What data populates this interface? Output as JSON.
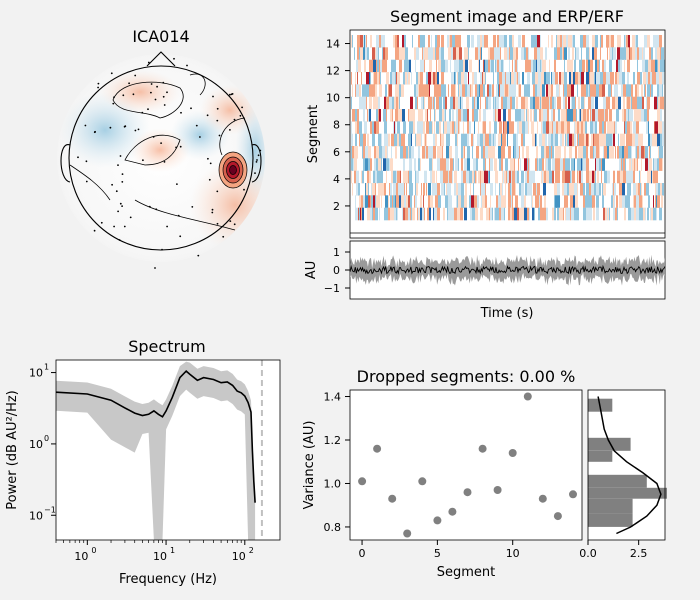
{
  "topomap": {
    "title": "ICA014"
  },
  "segment_image": {
    "title": "Segment image and ERP/ERF",
    "ylabel": "Segment",
    "yticks": [
      "2",
      "4",
      "6",
      "8",
      "10",
      "12",
      "14"
    ]
  },
  "erp": {
    "ylabel": "AU",
    "xlabel": "Time (s)",
    "yticks": [
      "1",
      "0",
      "−1"
    ]
  },
  "spectrum": {
    "title": "Spectrum",
    "ylabel": "Power (dB AU²/Hz)",
    "xlabel": "Frequency (Hz)"
  },
  "dropped": {
    "title": "Dropped segments: 0.00 %",
    "ylabel": "Variance (AU)",
    "xlabel": "Segment",
    "xticks": [
      "0",
      "5",
      "10"
    ],
    "yticks": [
      "1.4",
      "1.2",
      "1.0",
      "0.8"
    ],
    "hist_xticks": [
      "0.0",
      "2.5"
    ]
  },
  "colors": {
    "background": "#f2f2f2",
    "points": "#808080",
    "bars": "#808080",
    "hot": "#b2182b",
    "cold": "#2166ac"
  },
  "chart_data": [
    {
      "type": "heatmap",
      "title": "Segment image and ERP/ERF",
      "ylabel": "Segment",
      "ylim": [
        0,
        15
      ],
      "rows": 15
    },
    {
      "type": "line",
      "xlabel": "Time (s)",
      "ylabel": "AU",
      "ylim": [
        -1.6,
        1.5
      ],
      "mean_level": 0,
      "noise_amplitude": 0.5
    },
    {
      "type": "line",
      "title": "Spectrum",
      "xlabel": "Frequency (Hz)",
      "ylabel": "Power (dB AU²/Hz)",
      "log_x": true,
      "log_y": true,
      "xlim": [
        0.4,
        280
      ],
      "ylim": [
        0.045,
        15
      ],
      "vline": 165,
      "x": [
        0.4,
        1,
        2,
        3,
        4,
        5,
        6,
        7,
        8,
        9,
        10,
        12,
        15,
        18,
        20,
        25,
        30,
        40,
        50,
        60,
        70,
        80,
        90,
        100,
        110,
        120,
        125,
        130,
        135
      ],
      "y": [
        5.3,
        5.0,
        4.1,
        3.2,
        2.7,
        2.5,
        2.6,
        2.9,
        2.6,
        2.4,
        2.9,
        4.5,
        8.5,
        10.5,
        9.5,
        7.8,
        8.5,
        8.0,
        7.2,
        7.4,
        6.6,
        5.5,
        5.2,
        4.7,
        3.8,
        2.8,
        0.8,
        0.3,
        0.15
      ]
    },
    {
      "type": "scatter",
      "title": "Dropped segments: 0.00 %",
      "xlabel": "Segment",
      "ylabel": "Variance (AU)",
      "xlim": [
        -0.8,
        14.6
      ],
      "ylim": [
        0.74,
        1.43
      ],
      "x": [
        0,
        1,
        2,
        3,
        4,
        5,
        6,
        7,
        8,
        9,
        10,
        11,
        12,
        13,
        14
      ],
      "y": [
        1.01,
        1.16,
        0.93,
        0.77,
        1.01,
        0.83,
        0.87,
        0.96,
        1.16,
        0.97,
        1.14,
        1.4,
        0.93,
        0.85,
        0.95
      ]
    },
    {
      "type": "bar",
      "orientation": "horizontal",
      "xlim": [
        0,
        3.8
      ],
      "bins": [
        [
          0.8,
          0.86,
          2.2
        ],
        [
          0.86,
          0.93,
          2.2
        ],
        [
          0.93,
          0.98,
          3.9
        ],
        [
          0.98,
          1.04,
          2.9
        ],
        [
          1.1,
          1.15,
          1.2
        ],
        [
          1.15,
          1.21,
          2.1
        ],
        [
          1.33,
          1.39,
          1.2
        ]
      ],
      "kde": [
        [
          0.77,
          1.4
        ],
        [
          0.8,
          2.1
        ],
        [
          0.85,
          2.9
        ],
        [
          0.9,
          3.4
        ],
        [
          0.95,
          3.6
        ],
        [
          1.0,
          3.4
        ],
        [
          1.05,
          2.7
        ],
        [
          1.1,
          1.9
        ],
        [
          1.15,
          1.3
        ],
        [
          1.2,
          1.0
        ],
        [
          1.25,
          0.8
        ],
        [
          1.3,
          0.7
        ],
        [
          1.35,
          0.6
        ],
        [
          1.4,
          0.5
        ]
      ]
    }
  ]
}
